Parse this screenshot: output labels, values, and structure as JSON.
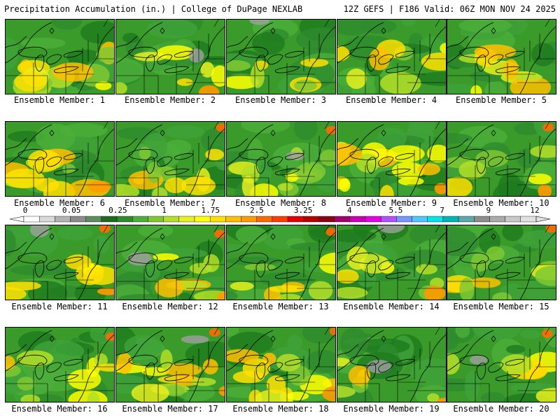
{
  "header": {
    "left": "Precipitation Accumulation (in.) | College of DuPage NEXLAB",
    "right": "12Z GEFS | F186 Valid: 06Z MON NOV 24 2025"
  },
  "colorbar": {
    "labels": [
      "0",
      "0.05",
      "0.25",
      "1",
      "1.75",
      "2.5",
      "3.25",
      "4",
      "5.5",
      "7",
      "9",
      "12"
    ],
    "colors": [
      "#ffffff",
      "#d9d9d9",
      "#b3b3b3",
      "#8c8c8c",
      "#5e8c5e",
      "#1e6b1e",
      "#2e8b2e",
      "#4caf3a",
      "#7fc832",
      "#b4df28",
      "#e6f01e",
      "#ffff00",
      "#ffe100",
      "#ffc000",
      "#ff9a00",
      "#ff6a00",
      "#ff3c00",
      "#e60000",
      "#b40000",
      "#8c0014",
      "#a0006e",
      "#c800b4",
      "#e600e6",
      "#b450ff",
      "#7896ff",
      "#50c8ff",
      "#00e6e6",
      "#00b4b4",
      "#5aaaaa",
      "#8c8c8c",
      "#aaaaaa",
      "#c8c8c8",
      "#e0e0e0"
    ]
  },
  "members": [
    {
      "label": "Ensemble Member: 1"
    },
    {
      "label": "Ensemble Member: 2"
    },
    {
      "label": "Ensemble Member: 3"
    },
    {
      "label": "Ensemble Member: 4"
    },
    {
      "label": "Ensemble Member: 5"
    },
    {
      "label": "Ensemble Member: 6"
    },
    {
      "label": "Ensemble Member: 7"
    },
    {
      "label": "Ensemble Member: 8"
    },
    {
      "label": "Ensemble Member: 9"
    },
    {
      "label": "Ensemble Member: 10"
    },
    {
      "label": "Ensemble Member: 11"
    },
    {
      "label": "Ensemble Member: 12"
    },
    {
      "label": "Ensemble Member: 13"
    },
    {
      "label": "Ensemble Member: 14"
    },
    {
      "label": "Ensemble Member: 15"
    },
    {
      "label": "Ensemble Member: 16"
    },
    {
      "label": "Ensemble Member: 17"
    },
    {
      "label": "Ensemble Member: 18"
    },
    {
      "label": "Ensemble Member: 19"
    },
    {
      "label": "Ensemble Member: 20"
    }
  ]
}
